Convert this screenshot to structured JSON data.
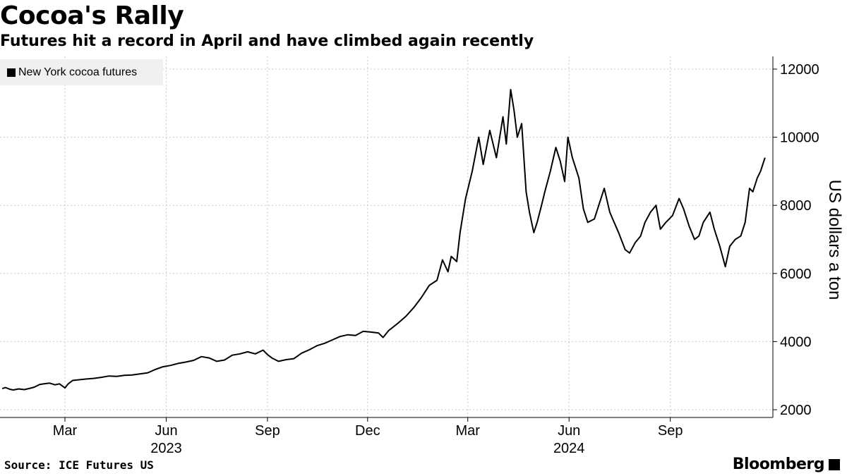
{
  "header": {
    "title": "Cocoa's Rally",
    "subtitle": "Futures hit a record in April and have climbed again recently"
  },
  "footer": {
    "source": "Source: ICE Futures US",
    "brand": "Bloomberg"
  },
  "chart_data": {
    "type": "line",
    "title": "Cocoa's Rally",
    "subtitle": "Futures hit a record in April and have climbed again recently",
    "ylabel": "US dollars a ton",
    "xlabel": "",
    "ylim": [
      2000,
      12000
    ],
    "yticks": [
      2000,
      4000,
      6000,
      8000,
      10000,
      12000
    ],
    "xlim": [
      "2023-01-01",
      "2024-11-30"
    ],
    "xticks": [
      {
        "date": "2023-03-01",
        "label": "Mar"
      },
      {
        "date": "2023-06-01",
        "label": "Jun"
      },
      {
        "date": "2023-09-01",
        "label": "Sep"
      },
      {
        "date": "2023-12-01",
        "label": "Dec"
      },
      {
        "date": "2024-03-01",
        "label": "Mar"
      },
      {
        "date": "2024-06-01",
        "label": "Jun"
      },
      {
        "date": "2024-09-01",
        "label": "Sep"
      }
    ],
    "year_labels": [
      {
        "date": "2023-06-01",
        "label": "2023"
      },
      {
        "date": "2024-06-01",
        "label": "2024"
      }
    ],
    "grid": true,
    "legend_position": "top-left",
    "series": [
      {
        "name": "New York cocoa futures",
        "color": "#000000",
        "points": [
          [
            "2023-01-03",
            2620
          ],
          [
            "2023-01-06",
            2650
          ],
          [
            "2023-01-10",
            2600
          ],
          [
            "2023-01-13",
            2580
          ],
          [
            "2023-01-18",
            2610
          ],
          [
            "2023-01-23",
            2590
          ],
          [
            "2023-01-27",
            2620
          ],
          [
            "2023-02-01",
            2660
          ],
          [
            "2023-02-06",
            2740
          ],
          [
            "2023-02-10",
            2760
          ],
          [
            "2023-02-15",
            2780
          ],
          [
            "2023-02-20",
            2730
          ],
          [
            "2023-02-24",
            2760
          ],
          [
            "2023-03-01",
            2640
          ],
          [
            "2023-03-04",
            2760
          ],
          [
            "2023-03-08",
            2860
          ],
          [
            "2023-03-14",
            2880
          ],
          [
            "2023-03-20",
            2900
          ],
          [
            "2023-03-27",
            2920
          ],
          [
            "2023-04-03",
            2950
          ],
          [
            "2023-04-10",
            2990
          ],
          [
            "2023-04-17",
            2980
          ],
          [
            "2023-04-24",
            3010
          ],
          [
            "2023-05-01",
            3020
          ],
          [
            "2023-05-08",
            3050
          ],
          [
            "2023-05-15",
            3080
          ],
          [
            "2023-05-22",
            3180
          ],
          [
            "2023-05-29",
            3260
          ],
          [
            "2023-06-05",
            3300
          ],
          [
            "2023-06-12",
            3360
          ],
          [
            "2023-06-19",
            3400
          ],
          [
            "2023-06-26",
            3450
          ],
          [
            "2023-07-03",
            3560
          ],
          [
            "2023-07-10",
            3520
          ],
          [
            "2023-07-17",
            3420
          ],
          [
            "2023-07-24",
            3460
          ],
          [
            "2023-07-31",
            3600
          ],
          [
            "2023-08-07",
            3640
          ],
          [
            "2023-08-14",
            3700
          ],
          [
            "2023-08-21",
            3640
          ],
          [
            "2023-08-28",
            3750
          ],
          [
            "2023-09-01",
            3620
          ],
          [
            "2023-09-05",
            3520
          ],
          [
            "2023-09-11",
            3420
          ],
          [
            "2023-09-18",
            3470
          ],
          [
            "2023-09-25",
            3500
          ],
          [
            "2023-10-02",
            3660
          ],
          [
            "2023-10-09",
            3760
          ],
          [
            "2023-10-16",
            3880
          ],
          [
            "2023-10-23",
            3950
          ],
          [
            "2023-10-30",
            4050
          ],
          [
            "2023-11-06",
            4150
          ],
          [
            "2023-11-13",
            4200
          ],
          [
            "2023-11-20",
            4180
          ],
          [
            "2023-11-27",
            4300
          ],
          [
            "2023-12-04",
            4280
          ],
          [
            "2023-12-11",
            4250
          ],
          [
            "2023-12-15",
            4120
          ],
          [
            "2023-12-20",
            4320
          ],
          [
            "2023-12-29",
            4550
          ],
          [
            "2024-01-05",
            4750
          ],
          [
            "2024-01-12",
            5000
          ],
          [
            "2024-01-19",
            5300
          ],
          [
            "2024-01-26",
            5650
          ],
          [
            "2024-02-02",
            5800
          ],
          [
            "2024-02-07",
            6400
          ],
          [
            "2024-02-12",
            6050
          ],
          [
            "2024-02-15",
            6500
          ],
          [
            "2024-02-20",
            6350
          ],
          [
            "2024-02-23",
            7200
          ],
          [
            "2024-02-28",
            8200
          ],
          [
            "2024-03-05",
            9000
          ],
          [
            "2024-03-11",
            10000
          ],
          [
            "2024-03-15",
            9200
          ],
          [
            "2024-03-21",
            10200
          ],
          [
            "2024-03-27",
            9400
          ],
          [
            "2024-04-02",
            10600
          ],
          [
            "2024-04-05",
            9800
          ],
          [
            "2024-04-09",
            11400
          ],
          [
            "2024-04-12",
            10800
          ],
          [
            "2024-04-15",
            10000
          ],
          [
            "2024-04-19",
            10400
          ],
          [
            "2024-04-23",
            8400
          ],
          [
            "2024-04-26",
            7800
          ],
          [
            "2024-04-30",
            7200
          ],
          [
            "2024-05-03",
            7500
          ],
          [
            "2024-05-07",
            8000
          ],
          [
            "2024-05-10",
            8400
          ],
          [
            "2024-05-15",
            9000
          ],
          [
            "2024-05-20",
            9700
          ],
          [
            "2024-05-24",
            9300
          ],
          [
            "2024-05-28",
            8700
          ],
          [
            "2024-05-31",
            10000
          ],
          [
            "2024-06-04",
            9400
          ],
          [
            "2024-06-10",
            8800
          ],
          [
            "2024-06-14",
            7900
          ],
          [
            "2024-06-18",
            7500
          ],
          [
            "2024-06-24",
            7600
          ],
          [
            "2024-06-28",
            8000
          ],
          [
            "2024-07-03",
            8500
          ],
          [
            "2024-07-08",
            7800
          ],
          [
            "2024-07-12",
            7500
          ],
          [
            "2024-07-16",
            7200
          ],
          [
            "2024-07-22",
            6700
          ],
          [
            "2024-07-26",
            6600
          ],
          [
            "2024-07-31",
            6900
          ],
          [
            "2024-08-05",
            7100
          ],
          [
            "2024-08-09",
            7500
          ],
          [
            "2024-08-14",
            7800
          ],
          [
            "2024-08-19",
            8000
          ],
          [
            "2024-08-23",
            7300
          ],
          [
            "2024-08-28",
            7500
          ],
          [
            "2024-09-03",
            7700
          ],
          [
            "2024-09-09",
            8200
          ],
          [
            "2024-09-13",
            7900
          ],
          [
            "2024-09-18",
            7400
          ],
          [
            "2024-09-23",
            7000
          ],
          [
            "2024-09-27",
            7100
          ],
          [
            "2024-10-01",
            7500
          ],
          [
            "2024-10-07",
            7800
          ],
          [
            "2024-10-11",
            7300
          ],
          [
            "2024-10-16",
            6800
          ],
          [
            "2024-10-21",
            6200
          ],
          [
            "2024-10-25",
            6800
          ],
          [
            "2024-10-30",
            7000
          ],
          [
            "2024-11-04",
            7100
          ],
          [
            "2024-11-08",
            7500
          ],
          [
            "2024-11-12",
            8500
          ],
          [
            "2024-11-15",
            8400
          ],
          [
            "2024-11-19",
            8800
          ],
          [
            "2024-11-22",
            9000
          ],
          [
            "2024-11-26",
            9400
          ]
        ]
      }
    ]
  }
}
